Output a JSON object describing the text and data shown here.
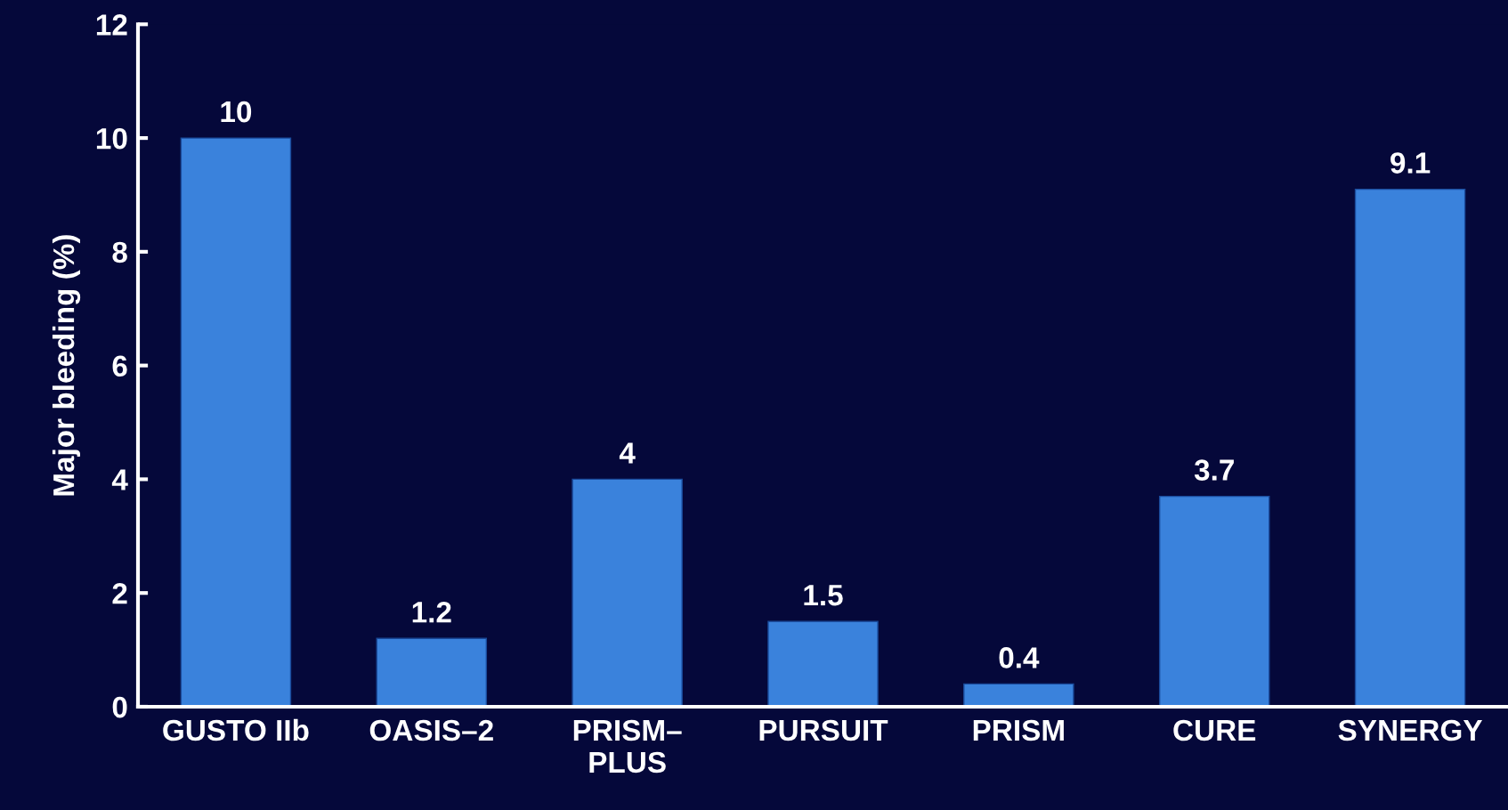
{
  "chart_data": {
    "type": "bar",
    "ylabel": "Major bleeding (%)",
    "categories": [
      "GUSTO IIb",
      "OASIS–2",
      "PRISM–\nPLUS",
      "PURSUIT",
      "PRISM",
      "CURE",
      "SYNERGY"
    ],
    "values": [
      10,
      1.2,
      4,
      1.5,
      0.4,
      3.7,
      9.1
    ],
    "color": "#3a82dc",
    "ylim": [
      0,
      12
    ],
    "yticks": [
      0,
      2,
      4,
      6,
      8,
      10,
      12
    ],
    "data_labels": true,
    "grid": false
  }
}
